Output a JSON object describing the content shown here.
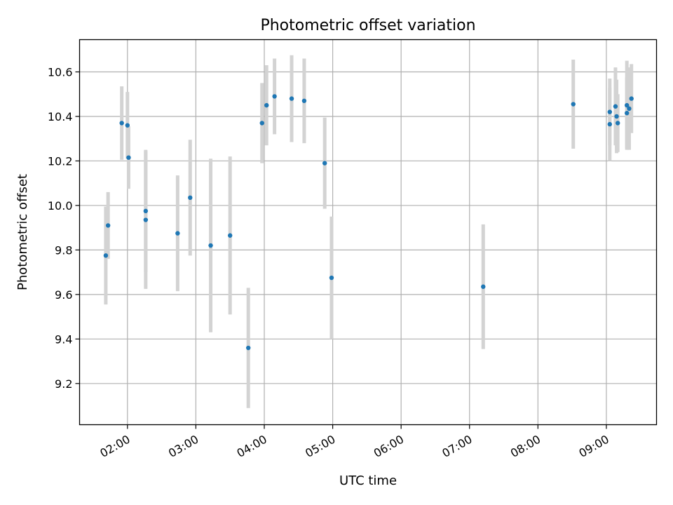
{
  "chart_data": {
    "type": "scatter",
    "title": "Photometric offset variation",
    "xlabel": "UTC time",
    "ylabel": "Photometric offset",
    "x_unit": "UTC time (HH:MM)",
    "xlim": [
      "01:18",
      "09:44"
    ],
    "ylim": [
      9.015,
      10.745
    ],
    "x_ticks": [
      "02:00",
      "03:00",
      "04:00",
      "05:00",
      "06:00",
      "07:00",
      "08:00",
      "09:00"
    ],
    "y_ticks": [
      9.2,
      9.4,
      9.6,
      9.8,
      10.0,
      10.2,
      10.4,
      10.6
    ],
    "y_tick_labels": [
      "9.2",
      "9.4",
      "9.6",
      "9.8",
      "10.0",
      "10.2",
      "10.4",
      "10.6"
    ],
    "grid": true,
    "colors": {
      "point": "#1f77b4",
      "errorbar": "#d3d3d3",
      "grid": "#b0b0b0"
    },
    "points": [
      {
        "x": "01:41",
        "y": 9.775,
        "err": 0.22
      },
      {
        "x": "01:43",
        "y": 9.91,
        "err": 0.15
      },
      {
        "x": "01:55",
        "y": 10.37,
        "err": 0.165
      },
      {
        "x": "02:00",
        "y": 10.36,
        "err": 0.15
      },
      {
        "x": "02:01",
        "y": 10.215,
        "err": 0.14
      },
      {
        "x": "02:16",
        "y": 9.975,
        "err": 0.275
      },
      {
        "x": "02:16",
        "y": 9.935,
        "err": 0.31
      },
      {
        "x": "02:44",
        "y": 9.875,
        "err": 0.26
      },
      {
        "x": "02:55",
        "y": 10.035,
        "err": 0.26
      },
      {
        "x": "03:13",
        "y": 9.82,
        "err": 0.39
      },
      {
        "x": "03:30",
        "y": 9.865,
        "err": 0.355
      },
      {
        "x": "03:46",
        "y": 9.36,
        "err": 0.27
      },
      {
        "x": "03:58",
        "y": 10.37,
        "err": 0.18
      },
      {
        "x": "04:02",
        "y": 10.45,
        "err": 0.18
      },
      {
        "x": "04:09",
        "y": 10.49,
        "err": 0.17
      },
      {
        "x": "04:24",
        "y": 10.48,
        "err": 0.195
      },
      {
        "x": "04:35",
        "y": 10.47,
        "err": 0.19
      },
      {
        "x": "04:53",
        "y": 10.19,
        "err": 0.205
      },
      {
        "x": "04:59",
        "y": 9.675,
        "err": 0.275
      },
      {
        "x": "07:12",
        "y": 9.635,
        "err": 0.28
      },
      {
        "x": "08:31",
        "y": 10.455,
        "err": 0.2
      },
      {
        "x": "09:03",
        "y": 10.365,
        "err": 0.165
      },
      {
        "x": "09:03",
        "y": 10.42,
        "err": 0.15
      },
      {
        "x": "09:08",
        "y": 10.445,
        "err": 0.175
      },
      {
        "x": "09:09",
        "y": 10.4,
        "err": 0.165
      },
      {
        "x": "09:10",
        "y": 10.37,
        "err": 0.13
      },
      {
        "x": "09:18",
        "y": 10.45,
        "err": 0.2
      },
      {
        "x": "09:18",
        "y": 10.415,
        "err": 0.16
      },
      {
        "x": "09:20",
        "y": 10.435,
        "err": 0.185
      },
      {
        "x": "09:22",
        "y": 10.48,
        "err": 0.155
      }
    ]
  }
}
